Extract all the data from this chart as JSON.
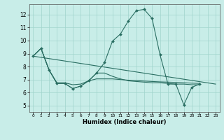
{
  "xlabel": "Humidex (Indice chaleur)",
  "background_color": "#c8ede8",
  "grid_color": "#a0d4cc",
  "line_color": "#2a6e62",
  "xlim": [
    -0.5,
    23.5
  ],
  "ylim": [
    4.5,
    12.8
  ],
  "yticks": [
    5,
    6,
    7,
    8,
    9,
    10,
    11,
    12
  ],
  "xticks": [
    0,
    1,
    2,
    3,
    4,
    5,
    6,
    7,
    8,
    9,
    10,
    11,
    12,
    13,
    14,
    15,
    16,
    17,
    18,
    19,
    20,
    21,
    22,
    23
  ],
  "line1_x": [
    0,
    1,
    2,
    3,
    4,
    5,
    6,
    7,
    8,
    9,
    10,
    11,
    12,
    13,
    14,
    15,
    16,
    17,
    18,
    19,
    20,
    21,
    22,
    23
  ],
  "line1_y": [
    8.8,
    9.4,
    7.75,
    6.7,
    6.7,
    6.3,
    6.5,
    6.9,
    7.5,
    8.3,
    9.95,
    10.5,
    11.5,
    12.3,
    12.4,
    11.7,
    8.9,
    6.65,
    6.65,
    5.05,
    6.4,
    6.65,
    null,
    null
  ],
  "line2_x": [
    0,
    1,
    2,
    3,
    4,
    5,
    6,
    7,
    8,
    9,
    10,
    11,
    12,
    13,
    14,
    15,
    16,
    17,
    18,
    19,
    20,
    21,
    22,
    23
  ],
  "line2_y": [
    8.8,
    9.4,
    7.75,
    6.7,
    6.7,
    6.3,
    6.5,
    6.9,
    7.5,
    7.5,
    7.25,
    7.05,
    6.9,
    6.85,
    6.8,
    6.75,
    6.75,
    6.7,
    6.65,
    6.65,
    6.6,
    6.6,
    null,
    null
  ],
  "line3_x": [
    0,
    1,
    2,
    3,
    4,
    5,
    6,
    7,
    8,
    9,
    10,
    11,
    12,
    13,
    14,
    15,
    16,
    17,
    18,
    19,
    20,
    21,
    22,
    23
  ],
  "line3_y": [
    8.8,
    9.4,
    7.75,
    6.75,
    6.75,
    6.6,
    6.65,
    6.9,
    7.05,
    7.05,
    7.05,
    7.0,
    6.95,
    6.92,
    6.88,
    6.85,
    6.82,
    6.8,
    6.78,
    6.75,
    6.72,
    6.7,
    null,
    null
  ],
  "line4_x": [
    0,
    23
  ],
  "line4_y": [
    8.8,
    6.65
  ]
}
